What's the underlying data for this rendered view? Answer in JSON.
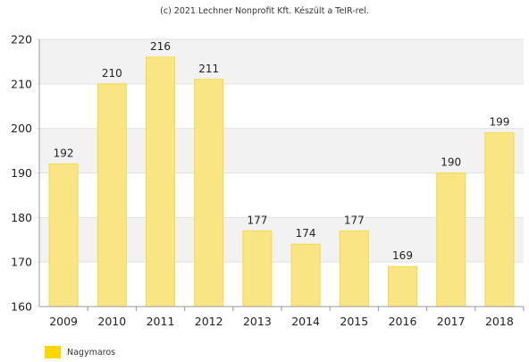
{
  "credit": "(c) 2021 Lechner Nonprofit Kft. Készült a TeIR-rel.",
  "chart_data": {
    "type": "bar",
    "categories": [
      "2009",
      "2010",
      "2011",
      "2012",
      "2013",
      "2014",
      "2015",
      "2016",
      "2017",
      "2018"
    ],
    "series": [
      {
        "name": "Nagymaros",
        "values": [
          192,
          210,
          216,
          211,
          177,
          174,
          177,
          169,
          190,
          199
        ]
      }
    ],
    "ylim": [
      160,
      220
    ],
    "yticks": [
      160,
      170,
      180,
      190,
      200,
      210,
      220
    ],
    "grid": true,
    "legend": "bottom-left",
    "colors": {
      "bar_fill": "#fae584",
      "bar_stroke": "#f5d84a",
      "legend_swatch": "#ffd700",
      "band": "#f2f2f2",
      "axis": "#999999"
    }
  }
}
